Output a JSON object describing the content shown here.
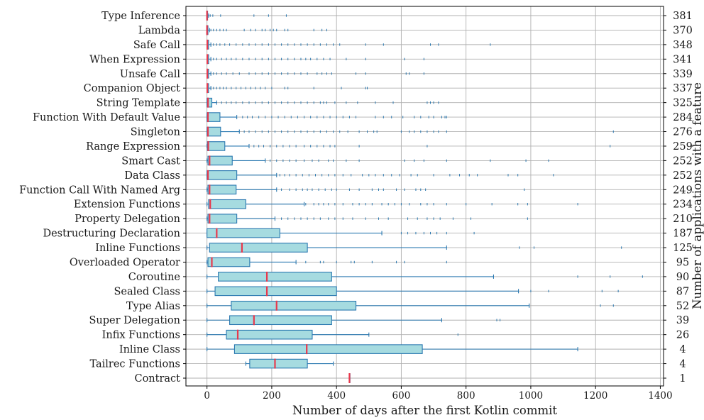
{
  "chart_data": {
    "type": "boxplot-horizontal",
    "xlabel": "Number of days after the first Kotlin commit",
    "y2label": "Number of applications with a feature",
    "xlim": [
      -65,
      1410
    ],
    "xticks": [
      0,
      200,
      400,
      600,
      800,
      1000,
      1200,
      1400
    ],
    "grid": true,
    "colors": {
      "box_fill": "#a6dbe0",
      "box_edge": "#2a78b0",
      "median": "#e8394d",
      "grid": "#b0b0b0"
    },
    "categories": [
      "Type Inference",
      "Lambda",
      "Safe Call",
      "When Expression",
      "Unsafe Call",
      "Companion Object",
      "String Template",
      "Function With Default Value",
      "Singleton",
      "Range Expression",
      "Smart Cast",
      "Data Class",
      "Function Call With Named Arg",
      "Extension Functions",
      "Property Delegation",
      "Destructuring Declaration",
      "Inline Functions",
      "Overloaded Operator",
      "Coroutine",
      "Sealed Class",
      "Type Alias",
      "Super Delegation",
      "Infix Functions",
      "Inline Class",
      "Tailrec Functions",
      "Contract"
    ],
    "counts": [
      "381",
      "370",
      "348",
      "341",
      "339",
      "337",
      "325",
      "284",
      "276",
      "259",
      "252",
      "252",
      "249",
      "234",
      "210",
      "187",
      "125",
      "95",
      "90",
      "87",
      "52",
      "39",
      "26",
      "4",
      "4",
      "1"
    ],
    "boxes": [
      {
        "whislo": 0,
        "q1": 0,
        "med": 0,
        "q3": 2,
        "whishi": 5,
        "fliers": [
          10,
          18,
          42,
          145,
          190,
          245
        ]
      },
      {
        "whislo": 0,
        "q1": 0,
        "med": 0,
        "q3": 3,
        "whishi": 8,
        "fliers": [
          12,
          20,
          30,
          40,
          50,
          60,
          115,
          135,
          150,
          170,
          180,
          195,
          205,
          215,
          240,
          250,
          330,
          355,
          370
        ]
      },
      {
        "whislo": 0,
        "q1": 0,
        "med": 1,
        "q3": 5,
        "whishi": 12,
        "fliers": [
          20,
          30,
          40,
          55,
          70,
          90,
          110,
          130,
          150,
          170,
          190,
          210,
          230,
          250,
          270,
          290,
          310,
          330,
          350,
          370,
          390,
          410,
          490,
          545,
          690,
          715,
          875
        ]
      },
      {
        "whislo": 0,
        "q1": 0,
        "med": 1,
        "q3": 5,
        "whishi": 12,
        "fliers": [
          20,
          30,
          45,
          60,
          75,
          90,
          110,
          130,
          150,
          170,
          190,
          210,
          230,
          250,
          270,
          290,
          305,
          320,
          340,
          360,
          380,
          430,
          490,
          610,
          670
        ]
      },
      {
        "whislo": 0,
        "q1": 0,
        "med": 1,
        "q3": 5,
        "whishi": 12,
        "fliers": [
          20,
          30,
          45,
          60,
          80,
          100,
          130,
          150,
          170,
          190,
          210,
          230,
          250,
          270,
          290,
          310,
          340,
          355,
          370,
          385,
          460,
          490,
          615,
          625,
          670
        ]
      },
      {
        "whislo": 0,
        "q1": 0,
        "med": 1,
        "q3": 5,
        "whishi": 12,
        "fliers": [
          20,
          30,
          40,
          50,
          60,
          75,
          90,
          105,
          120,
          135,
          150,
          165,
          180,
          200,
          240,
          250,
          330,
          415,
          490,
          495
        ]
      },
      {
        "whislo": 0,
        "q1": 0,
        "med": 3,
        "q3": 15,
        "whishi": 30,
        "fliers": [
          45,
          60,
          75,
          90,
          110,
          130,
          150,
          170,
          190,
          210,
          230,
          250,
          270,
          290,
          310,
          330,
          350,
          360,
          370,
          395,
          430,
          465,
          520,
          575,
          680,
          690,
          700,
          715
        ]
      },
      {
        "whislo": 0,
        "q1": 0,
        "med": 3,
        "q3": 40,
        "whishi": 92,
        "fliers": [
          110,
          125,
          140,
          160,
          180,
          200,
          220,
          240,
          260,
          280,
          300,
          320,
          340,
          360,
          380,
          400,
          420,
          440,
          460,
          520,
          545,
          570,
          605,
          640,
          660,
          685,
          700,
          725,
          735,
          740
        ]
      },
      {
        "whislo": 0,
        "q1": 0,
        "med": 3,
        "q3": 42,
        "whishi": 100,
        "fliers": [
          115,
          130,
          150,
          170,
          190,
          210,
          230,
          250,
          270,
          290,
          310,
          330,
          350,
          370,
          390,
          410,
          435,
          470,
          495,
          515,
          525,
          600,
          625,
          640,
          660,
          680,
          700,
          715,
          740,
          1255
        ]
      },
      {
        "whislo": 0,
        "q1": 1,
        "med": 4,
        "q3": 55,
        "whishi": 130,
        "fliers": [
          145,
          160,
          175,
          195,
          215,
          235,
          255,
          275,
          300,
          320,
          340,
          360,
          380,
          395,
          470,
          680,
          1245
        ]
      },
      {
        "whislo": 0,
        "q1": 3,
        "med": 8,
        "q3": 78,
        "whishi": 180,
        "fliers": [
          195,
          215,
          235,
          255,
          275,
          300,
          325,
          345,
          375,
          390,
          430,
          470,
          610,
          640,
          670,
          740,
          875,
          985,
          1055
        ]
      },
      {
        "whislo": 0,
        "q1": 0,
        "med": 3,
        "q3": 92,
        "whishi": 215,
        "fliers": [
          225,
          240,
          255,
          275,
          295,
          315,
          335,
          355,
          375,
          395,
          420,
          445,
          480,
          500,
          520,
          545,
          570,
          595,
          630,
          650,
          700,
          750,
          780,
          810,
          835,
          930,
          960,
          1070
        ]
      },
      {
        "whislo": 0,
        "q1": 3,
        "med": 8,
        "q3": 90,
        "whishi": 215,
        "fliers": [
          230,
          255,
          275,
          295,
          310,
          325,
          345,
          365,
          385,
          400,
          440,
          470,
          510,
          530,
          545,
          585,
          610,
          645,
          660,
          675,
          980
        ]
      },
      {
        "whislo": 0,
        "q1": 5,
        "med": 10,
        "q3": 120,
        "whishi": 300,
        "fliers": [
          305,
          330,
          345,
          360,
          375,
          395,
          420,
          450,
          470,
          490,
          510,
          540,
          560,
          580,
          600,
          625,
          660,
          680,
          700,
          740,
          800,
          880,
          960,
          990,
          1145
        ]
      },
      {
        "whislo": 0,
        "q1": 3,
        "med": 8,
        "q3": 92,
        "whishi": 210,
        "fliers": [
          230,
          250,
          270,
          290,
          310,
          330,
          350,
          375,
          395,
          420,
          450,
          490,
          530,
          560,
          620,
          650,
          680,
          700,
          720,
          760,
          815,
          990
        ]
      },
      {
        "whislo": 0,
        "q1": 0,
        "med": 30,
        "q3": 225,
        "whishi": 540,
        "fliers": [
          600,
          620,
          645,
          670,
          690,
          710,
          740,
          825
        ]
      },
      {
        "whislo": 0,
        "q1": 8,
        "med": 108,
        "q3": 310,
        "whishi": 740,
        "fliers": [
          965,
          1010,
          1280
        ]
      },
      {
        "whislo": 0,
        "q1": 3,
        "med": 15,
        "q3": 132,
        "whishi": 275,
        "fliers": [
          305,
          350,
          360,
          400,
          445,
          455,
          510,
          585,
          610,
          740
        ]
      },
      {
        "whislo": 0,
        "q1": 35,
        "med": 185,
        "q3": 385,
        "whishi": 885,
        "fliers": [
          1145,
          1245,
          1345
        ]
      },
      {
        "whislo": 0,
        "q1": 25,
        "med": 185,
        "q3": 400,
        "whishi": 962,
        "fliers": [
          1000,
          1055,
          1220,
          1270
        ]
      },
      {
        "whislo": 0,
        "q1": 75,
        "med": 215,
        "q3": 460,
        "whishi": 995,
        "fliers": [
          1215,
          1255
        ]
      },
      {
        "whislo": 0,
        "q1": 70,
        "med": 145,
        "q3": 385,
        "whishi": 725,
        "fliers": [
          895,
          905
        ]
      },
      {
        "whislo": 0,
        "q1": 60,
        "med": 95,
        "q3": 325,
        "whishi": 500,
        "fliers": [
          775
        ]
      },
      {
        "whislo": 0,
        "q1": 85,
        "med": 308,
        "q3": 665,
        "whishi": 1145,
        "fliers": []
      },
      {
        "whislo": 120,
        "q1": 132,
        "med": 210,
        "q3": 310,
        "whishi": 390,
        "fliers": []
      },
      {
        "whislo": 440,
        "q1": 440,
        "med": 440,
        "q3": 440,
        "whishi": 440,
        "fliers": []
      }
    ]
  }
}
